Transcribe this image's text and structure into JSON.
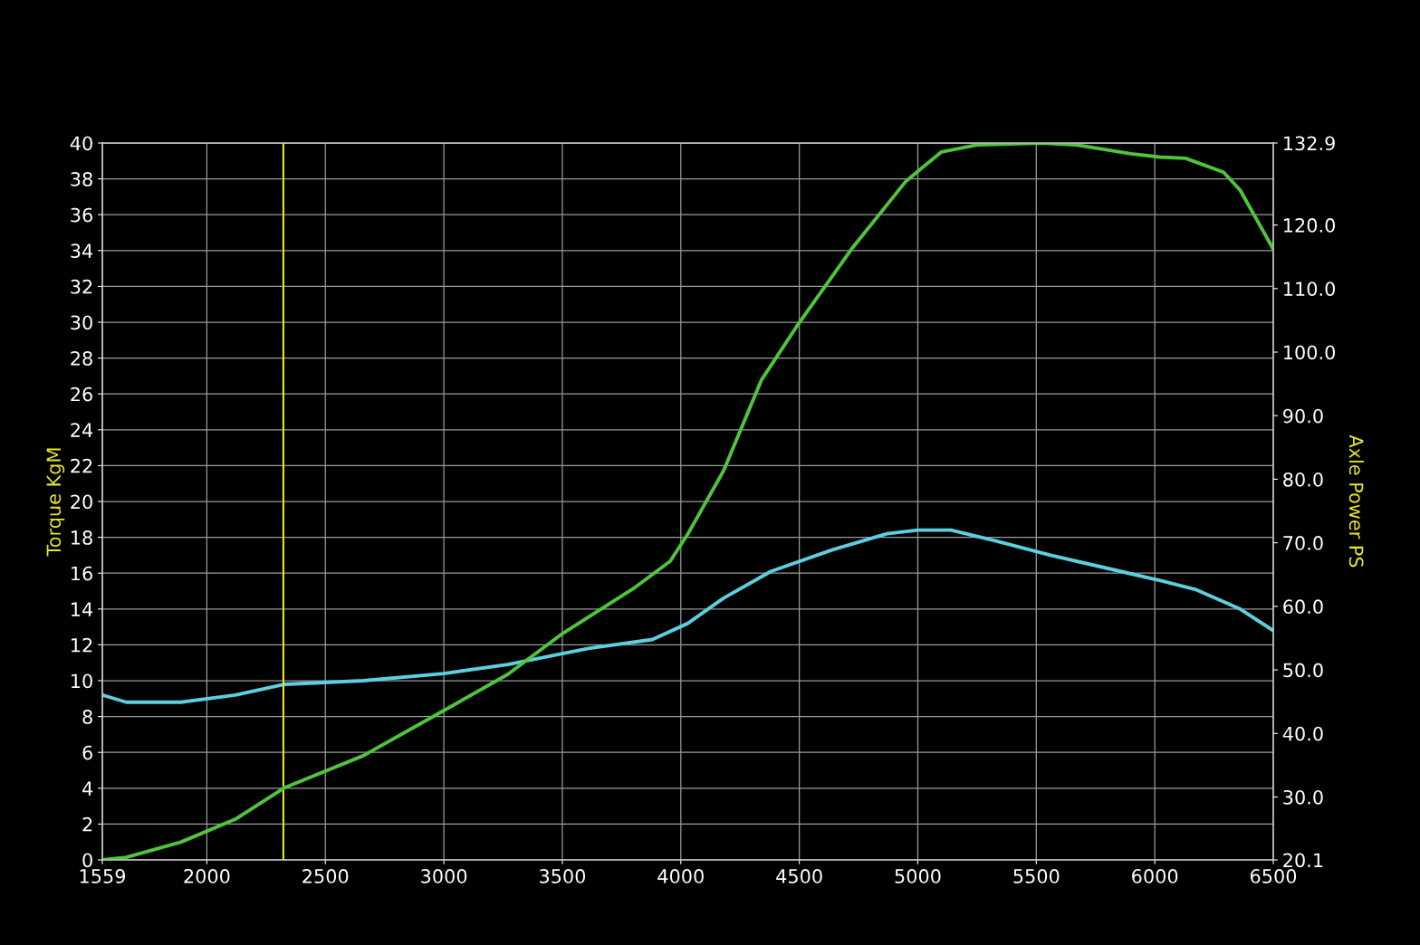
{
  "chart_data": {
    "type": "line",
    "xlabel": null,
    "ylabel": "Torque KgM",
    "y2label": "Axle Power PS",
    "xlim": [
      1559,
      6500
    ],
    "xticks": [
      1559,
      2000,
      2500,
      3000,
      3500,
      4000,
      4500,
      5000,
      5500,
      6000,
      6500
    ],
    "ylim": [
      0,
      40
    ],
    "yticks": [
      0,
      2,
      4,
      6,
      8,
      10,
      12,
      14,
      16,
      18,
      20,
      22,
      24,
      26,
      28,
      30,
      32,
      34,
      36,
      38,
      40
    ],
    "y2lim": [
      20.1,
      132.9
    ],
    "y2ticks": [
      {
        "value": 20.1,
        "label": "20.1"
      },
      {
        "value": 30,
        "label": "30.0"
      },
      {
        "value": 40,
        "label": "40.0"
      },
      {
        "value": 50,
        "label": "50.0"
      },
      {
        "value": 60,
        "label": "60.0"
      },
      {
        "value": 70,
        "label": "70.0"
      },
      {
        "value": 80,
        "label": "80.0"
      },
      {
        "value": 90,
        "label": "90.0"
      },
      {
        "value": 100,
        "label": "100.0"
      },
      {
        "value": 110,
        "label": "110.0"
      },
      {
        "value": 120,
        "label": "120.0"
      },
      {
        "value": 132.9,
        "label": "132.9"
      }
    ],
    "grid": true,
    "legend": false,
    "marker": "none",
    "line_style": "solid",
    "ref_lines": [
      {
        "axis": "x",
        "value": 2323,
        "color": "#e6e629"
      }
    ],
    "series": [
      {
        "color": "#5ccfe0",
        "x": [
          1559,
          1660,
          1890,
          2120,
          2330,
          2660,
          3000,
          3270,
          3610,
          3880,
          4030,
          4180,
          4380,
          4640,
          4870,
          5000,
          5140,
          5330,
          5560,
          5790,
          6020,
          6170,
          6360,
          6500
        ],
        "values": [
          9.2,
          8.8,
          8.8,
          9.2,
          9.8,
          10.0,
          10.4,
          10.9,
          11.8,
          12.3,
          13.2,
          14.6,
          16.1,
          17.3,
          18.2,
          18.4,
          18.4,
          17.8,
          17.0,
          16.3,
          15.6,
          15.1,
          14.0,
          12.8
        ]
      },
      {
        "color": "#4fc43c",
        "axis": "y2",
        "x": [
          1559,
          1660,
          1890,
          2120,
          2330,
          2660,
          3000,
          3270,
          3500,
          3800,
          3955,
          4030,
          4180,
          4340,
          4490,
          4720,
          4950,
          5100,
          5250,
          5520,
          5670,
          5900,
          6020,
          6130,
          6290,
          6360,
          6500
        ],
        "values": [
          20.1,
          20.5,
          22.9,
          26.5,
          31.5,
          36.5,
          43.6,
          49.3,
          55.7,
          62.8,
          67.1,
          71.4,
          81.3,
          95.6,
          104.1,
          116.2,
          126.9,
          131.5,
          132.6,
          132.9,
          132.6,
          131.2,
          130.7,
          130.5,
          128.3,
          125.5,
          116.2
        ]
      }
    ]
  }
}
